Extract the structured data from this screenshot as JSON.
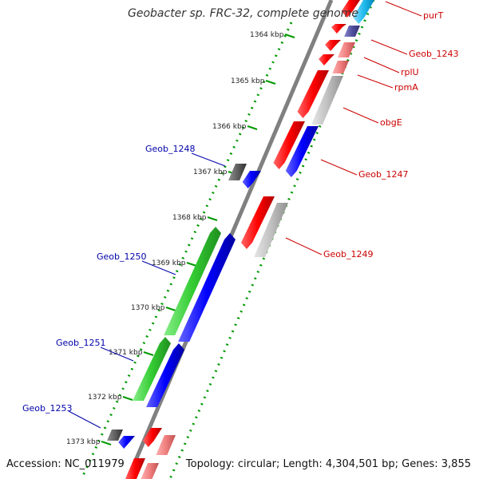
{
  "title": "Geobacter sp. FRC-32, complete genome",
  "footer": {
    "accession": "Accession: NC_011979",
    "topology": "Topology: circular; Length: 4,304,501 bp; Genes: 3,855"
  },
  "kbp_ticks": [
    "1364 kbp",
    "1365 kbp",
    "1366 kbp",
    "1367 kbp",
    "1368 kbp",
    "1369 kbp",
    "1370 kbp",
    "1371 kbp",
    "1372 kbp",
    "1373 kbp"
  ],
  "genes": {
    "purT": "purT",
    "geob1243": "Geob_1243",
    "rplU": "rplU",
    "rpmA": "rpmA",
    "obgE": "obgE",
    "geob1247": "Geob_1247",
    "geob1249": "Geob_1249",
    "geob1248": "Geob_1248",
    "geob1250": "Geob_1250",
    "geob1251": "Geob_1251",
    "geob1253": "Geob_1253"
  },
  "colors": {
    "forward_label": "#cc0000",
    "reverse_label": "#0000aa",
    "red": "#ff0000",
    "pink": "#f08080",
    "gray": "#c0c0c0",
    "dark_gray": "#606060",
    "blue": "#0000ff",
    "green": "#33cc33",
    "cyan": "#22bbee",
    "navy": "#5050a0",
    "backbone": "#808080",
    "dots": "#009900"
  }
}
